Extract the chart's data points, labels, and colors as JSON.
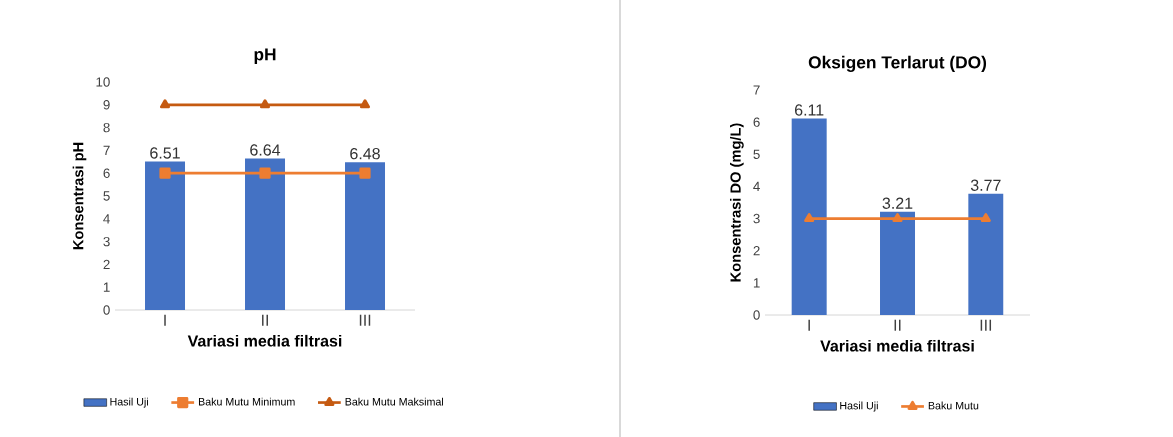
{
  "chart_data": [
    {
      "type": "bar",
      "title": "pH",
      "xlabel": "Variasi  media filtrasi",
      "ylabel": "Konsentrasi pH",
      "categories": [
        "I",
        "II",
        "III"
      ],
      "ylim": [
        0,
        10
      ],
      "yticks": [
        0,
        1,
        2,
        3,
        4,
        5,
        6,
        7,
        8,
        9,
        10
      ],
      "legend": "bottom",
      "grid": false,
      "series": [
        {
          "name": "Hasil Uji",
          "color": "#4472c4",
          "values": [
            6.51,
            6.64,
            6.48
          ],
          "value_labels": [
            "6.51",
            "6.64",
            "6.48"
          ]
        },
        {
          "name": "Baku Mutu Minimum",
          "type": "line",
          "color": "#ed7d31",
          "marker": "square",
          "values": [
            6,
            6,
            6
          ]
        },
        {
          "name": "Baku Mutu Maksimal",
          "type": "line",
          "color": "#c55a11",
          "marker": "triangle",
          "values": [
            9,
            9,
            9
          ]
        }
      ]
    },
    {
      "type": "bar",
      "title": "Oksigen Terlarut (DO)",
      "xlabel": "Variasi  media filtrasi",
      "ylabel": "Konsentrasi DO (mg/L)",
      "categories": [
        "I",
        "II",
        "III"
      ],
      "ylim": [
        0,
        7
      ],
      "yticks": [
        0,
        1,
        2,
        3,
        4,
        5,
        6,
        7
      ],
      "legend": "bottom",
      "grid": false,
      "series": [
        {
          "name": "Hasil Uji",
          "color": "#4472c4",
          "values": [
            6.11,
            3.21,
            3.77
          ],
          "value_labels": [
            "6.11",
            "3.21",
            "3.77"
          ]
        },
        {
          "name": "Baku Mutu",
          "type": "line",
          "color": "#ed7d31",
          "marker": "triangle",
          "values": [
            3,
            3,
            3
          ]
        }
      ]
    }
  ]
}
